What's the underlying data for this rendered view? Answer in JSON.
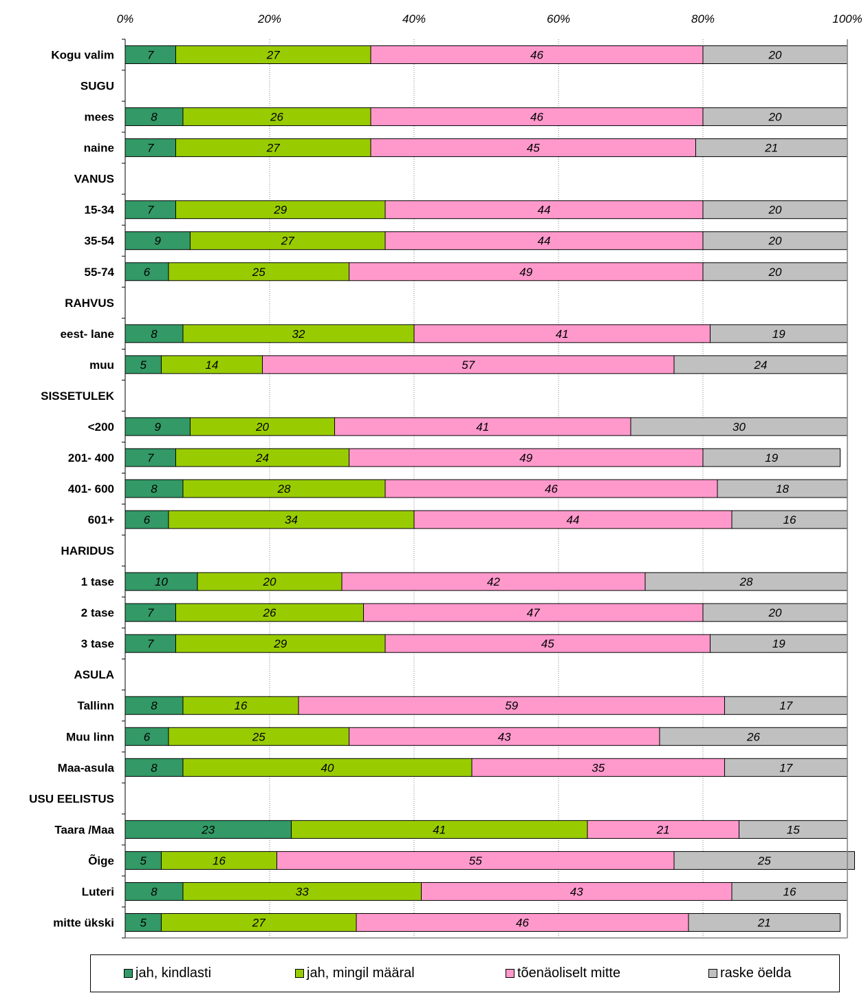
{
  "chart_data": {
    "type": "bar",
    "orientation": "horizontal",
    "stacked": true,
    "percent_stacked": true,
    "x_ticks": [
      "0%",
      "20%",
      "40%",
      "60%",
      "80%",
      "100%"
    ],
    "xlim": [
      0,
      100
    ],
    "grid": "vertical-dotted",
    "legend_position": "bottom",
    "categories": [
      "Kogu valim",
      "SUGU",
      "mees",
      "naine",
      "VANUS",
      "15-34",
      "35-54",
      "55-74",
      "RAHVUS",
      "eest- lane",
      "muu",
      "SISSETULEK",
      "<200",
      "201- 400",
      "401- 600",
      "601+",
      "HARIDUS",
      "1 tase",
      "2 tase",
      "3 tase",
      "ASULA",
      "Tallinn",
      "Muu linn",
      "Maa-asula",
      "USU EELISTUS",
      "Taara /Maa",
      "Õige",
      "Luteri",
      "mitte ükski"
    ],
    "series": [
      {
        "name": "jah, kindlasti",
        "color": "#339966",
        "values": [
          7,
          null,
          8,
          7,
          null,
          7,
          9,
          6,
          null,
          8,
          5,
          null,
          9,
          7,
          8,
          6,
          null,
          10,
          7,
          7,
          null,
          8,
          6,
          8,
          null,
          23,
          5,
          8,
          5
        ]
      },
      {
        "name": "jah, mingil määral",
        "color": "#99cc00",
        "values": [
          27,
          null,
          26,
          27,
          null,
          29,
          27,
          25,
          null,
          32,
          14,
          null,
          20,
          24,
          28,
          34,
          null,
          20,
          26,
          29,
          null,
          16,
          25,
          40,
          null,
          41,
          16,
          33,
          27
        ]
      },
      {
        "name": "tõenäoliselt mitte",
        "color": "#ff99cc",
        "values": [
          46,
          null,
          46,
          45,
          null,
          44,
          44,
          49,
          null,
          41,
          57,
          null,
          41,
          49,
          46,
          44,
          null,
          42,
          47,
          45,
          null,
          59,
          43,
          35,
          null,
          21,
          55,
          43,
          46
        ]
      },
      {
        "name": "raske öelda",
        "color": "#c0c0c0",
        "values": [
          20,
          null,
          20,
          21,
          null,
          20,
          20,
          20,
          null,
          19,
          24,
          null,
          30,
          19,
          18,
          16,
          null,
          28,
          20,
          19,
          null,
          17,
          26,
          17,
          null,
          15,
          25,
          16,
          21
        ]
      }
    ]
  }
}
